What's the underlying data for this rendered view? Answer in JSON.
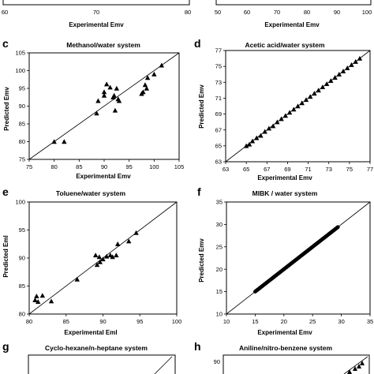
{
  "chart_data": [
    {
      "id": "a",
      "type": "scatter",
      "panel_label": "",
      "title": "",
      "xlabel": "Experimental Emv",
      "ylabel": "",
      "xlim": [
        60,
        80
      ],
      "xticks": [
        "60",
        "70",
        "80"
      ],
      "yticks": [],
      "diagonal": true,
      "marker": "line",
      "points": []
    },
    {
      "id": "b",
      "type": "scatter",
      "panel_label": "",
      "title": "",
      "xlabel": "Experimental Emv",
      "ylabel": "",
      "xlim": [
        50,
        100
      ],
      "xticks": [
        "50",
        "60",
        "70",
        "80",
        "90",
        "100"
      ],
      "yticks": [],
      "diagonal": true,
      "marker": "line",
      "points": []
    },
    {
      "id": "c",
      "type": "scatter",
      "panel_label": "c",
      "title": "Methanol/water system",
      "xlabel": "Experimental Emv",
      "ylabel": "Predicted Emv",
      "xlim": [
        75,
        105
      ],
      "ylim": [
        75,
        105
      ],
      "xticks": [
        "75",
        "80",
        "85",
        "90",
        "95",
        "100",
        "105"
      ],
      "yticks": [
        "75",
        "80",
        "85",
        "90",
        "95",
        "100",
        "105"
      ],
      "diagonal": true,
      "marker": "triangle",
      "points": [
        [
          80,
          80
        ],
        [
          82,
          80
        ],
        [
          88.5,
          88
        ],
        [
          88.8,
          91.5
        ],
        [
          90,
          93
        ],
        [
          90,
          94
        ],
        [
          90.5,
          96.2
        ],
        [
          91.2,
          95.3
        ],
        [
          91.8,
          92.5
        ],
        [
          92,
          93
        ],
        [
          92.2,
          88.8
        ],
        [
          92.5,
          95
        ],
        [
          92.8,
          92
        ],
        [
          93,
          91.5
        ],
        [
          97.5,
          93.5
        ],
        [
          97.8,
          94
        ],
        [
          98.2,
          96
        ],
        [
          98.5,
          95
        ],
        [
          98.7,
          98
        ],
        [
          100,
          99
        ],
        [
          101.5,
          101.5
        ]
      ]
    },
    {
      "id": "d",
      "type": "scatter",
      "panel_label": "d",
      "title": "Acetic acid/water system",
      "xlabel": "Experimental Emv",
      "ylabel": "Predicted Emv",
      "xlim": [
        63,
        77
      ],
      "ylim": [
        63,
        77
      ],
      "xticks": [
        "63",
        "65",
        "67",
        "69",
        "71",
        "73",
        "75",
        "77"
      ],
      "yticks": [
        "63",
        "65",
        "67",
        "69",
        "71",
        "73",
        "75",
        "77"
      ],
      "diagonal": true,
      "marker": "triangle",
      "points": [
        [
          65,
          65
        ],
        [
          65.3,
          65.2
        ],
        [
          65.6,
          65.6
        ],
        [
          66,
          66
        ],
        [
          66.4,
          66.3
        ],
        [
          66.8,
          66.8
        ],
        [
          67.2,
          67.2
        ],
        [
          67.6,
          67.5
        ],
        [
          68,
          68
        ],
        [
          68.4,
          68.4
        ],
        [
          68.8,
          68.8
        ],
        [
          69.2,
          69.2
        ],
        [
          69.6,
          69.6
        ],
        [
          70,
          70
        ],
        [
          70.4,
          70.4
        ],
        [
          70.8,
          70.8
        ],
        [
          71.2,
          71.2
        ],
        [
          71.6,
          71.6
        ],
        [
          72,
          72
        ],
        [
          72.4,
          72.4
        ],
        [
          72.8,
          72.8
        ],
        [
          73.2,
          73.2
        ],
        [
          73.6,
          73.6
        ],
        [
          74,
          74
        ],
        [
          74.4,
          74.4
        ],
        [
          74.8,
          74.8
        ],
        [
          75.2,
          75.2
        ],
        [
          75.6,
          75.6
        ],
        [
          76,
          76
        ]
      ]
    },
    {
      "id": "e",
      "type": "scatter",
      "panel_label": "e",
      "title": "Toluene/water system",
      "xlabel": "Experimental Eml",
      "ylabel": "Predicted Eml",
      "xlim": [
        80,
        100
      ],
      "ylim": [
        80,
        100
      ],
      "xticks": [
        "80",
        "85",
        "90",
        "95",
        "100"
      ],
      "yticks": [
        "80",
        "85",
        "90",
        "95",
        "100"
      ],
      "diagonal": true,
      "marker": "triangle",
      "points": [
        [
          80.8,
          82.5
        ],
        [
          81,
          83.2
        ],
        [
          81.2,
          82.2
        ],
        [
          81.8,
          83.3
        ],
        [
          83,
          82.3
        ],
        [
          86.5,
          86.2
        ],
        [
          89,
          90.5
        ],
        [
          89.2,
          88.8
        ],
        [
          89.5,
          90.2
        ],
        [
          89.6,
          89.3
        ],
        [
          90,
          89.8
        ],
        [
          90.5,
          90.3
        ],
        [
          91,
          90.5
        ],
        [
          91.3,
          90.2
        ],
        [
          91.8,
          90.5
        ],
        [
          92,
          92.5
        ],
        [
          93.5,
          93
        ],
        [
          94.5,
          94.5
        ]
      ]
    },
    {
      "id": "f",
      "type": "scatter",
      "panel_label": "f",
      "title": "MIBK / water system",
      "xlabel": "Experimental Emv",
      "ylabel": "Predicted Emv",
      "xlim": [
        10,
        35
      ],
      "ylim": [
        10,
        35
      ],
      "xticks": [
        "10",
        "15",
        "20",
        "25",
        "30",
        "35"
      ],
      "yticks": [
        "10",
        "15",
        "20",
        "25",
        "30",
        "35"
      ],
      "diagonal": true,
      "marker": "dense",
      "range": [
        15,
        29.5
      ]
    },
    {
      "id": "g",
      "type": "scatter",
      "panel_label": "g",
      "title": "Cyclo-hexane/n-heptane system",
      "xlabel": "",
      "ylabel": "",
      "xticks": [],
      "yticks": [],
      "diagonal": true,
      "marker": "line",
      "points": []
    },
    {
      "id": "h",
      "type": "scatter",
      "panel_label": "h",
      "title": "Aniline/nitro-benzene system",
      "xlabel": "",
      "ylabel": "",
      "xticks": [],
      "yticks": [
        "90"
      ],
      "diagonal": true,
      "marker": "line",
      "points": []
    }
  ]
}
